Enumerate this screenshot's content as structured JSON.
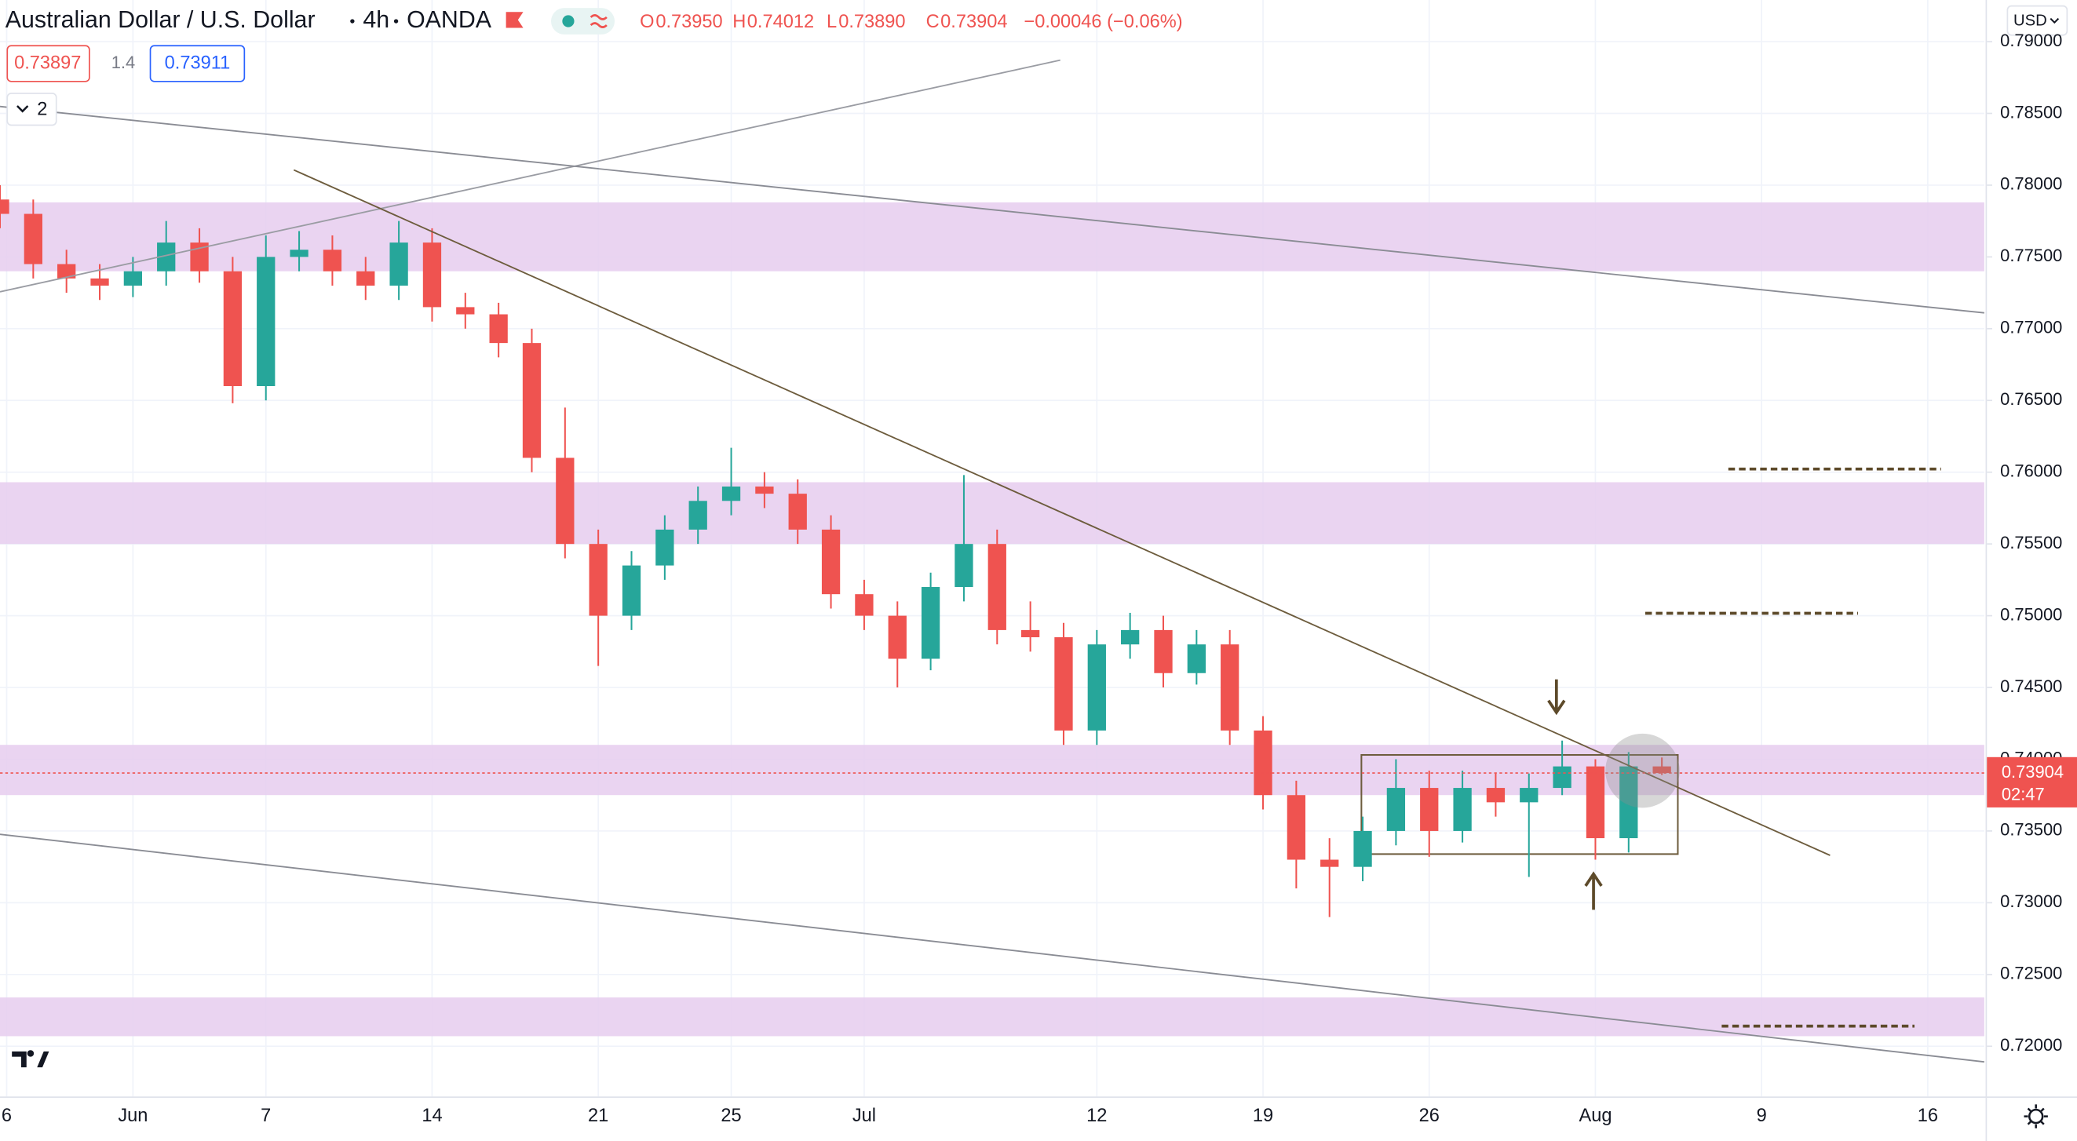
{
  "header": {
    "symbol": "Australian Dollar / U.S. Dollar",
    "interval": "4h",
    "exchange": "OANDA",
    "open_label": "O",
    "open": "0.73950",
    "high_label": "H",
    "high": "0.74012",
    "low_label": "L",
    "low": "0.73890",
    "close_label": "C",
    "close": "0.73904",
    "change": "−0.00046 (−0.06%)",
    "sell": "0.73897",
    "spread": "1.4",
    "buy": "0.73911",
    "indicators_count": "2",
    "currency": "USD"
  },
  "chart_data": {
    "type": "candlestick",
    "x": [
      0,
      1,
      2,
      3,
      4,
      5,
      6,
      7,
      8,
      9,
      10,
      11,
      12,
      13,
      14,
      15,
      16,
      17,
      18,
      19,
      20,
      21,
      22,
      23,
      24,
      25,
      26,
      27,
      28,
      29,
      30,
      31,
      32,
      33,
      34,
      35,
      36,
      37,
      38,
      39,
      40,
      41,
      42,
      43,
      44,
      45,
      46,
      47,
      48,
      49,
      50
    ],
    "open": [
      0.779,
      0.778,
      0.7745,
      0.7735,
      0.773,
      0.774,
      0.776,
      0.774,
      0.766,
      0.775,
      0.7755,
      0.774,
      0.773,
      0.776,
      0.7715,
      0.771,
      0.769,
      0.761,
      0.755,
      0.75,
      0.7535,
      0.756,
      0.758,
      0.759,
      0.7585,
      0.756,
      0.7515,
      0.75,
      0.747,
      0.752,
      0.755,
      0.749,
      0.7485,
      0.742,
      0.748,
      0.749,
      0.746,
      0.748,
      0.742,
      0.7375,
      0.733,
      0.7325,
      0.735,
      0.738,
      0.735,
      0.738,
      0.737,
      0.738,
      0.7395,
      0.7345,
      0.7395
    ],
    "high": [
      0.78,
      0.779,
      0.7755,
      0.7745,
      0.775,
      0.7775,
      0.777,
      0.775,
      0.7765,
      0.7768,
      0.7765,
      0.775,
      0.7775,
      0.777,
      0.7725,
      0.7718,
      0.77,
      0.7645,
      0.756,
      0.7545,
      0.757,
      0.759,
      0.7617,
      0.76,
      0.7595,
      0.757,
      0.7525,
      0.751,
      0.753,
      0.7598,
      0.756,
      0.751,
      0.7495,
      0.749,
      0.7502,
      0.75,
      0.749,
      0.749,
      0.743,
      0.7385,
      0.7345,
      0.736,
      0.74,
      0.7392,
      0.7392,
      0.739,
      0.739,
      0.7413,
      0.74,
      0.7405,
      0.74012
    ],
    "low": [
      0.777,
      0.7735,
      0.7725,
      0.772,
      0.7722,
      0.773,
      0.7732,
      0.7648,
      0.765,
      0.774,
      0.773,
      0.772,
      0.772,
      0.7705,
      0.77,
      0.768,
      0.76,
      0.754,
      0.7465,
      0.749,
      0.7525,
      0.755,
      0.757,
      0.7575,
      0.755,
      0.7505,
      0.749,
      0.745,
      0.7462,
      0.751,
      0.748,
      0.7475,
      0.741,
      0.741,
      0.747,
      0.745,
      0.7452,
      0.741,
      0.7365,
      0.731,
      0.729,
      0.7315,
      0.734,
      0.7332,
      0.7342,
      0.736,
      0.7318,
      0.7375,
      0.733,
      0.7335,
      0.7389
    ],
    "close": [
      0.778,
      0.7745,
      0.7735,
      0.773,
      0.774,
      0.776,
      0.774,
      0.766,
      0.775,
      0.7755,
      0.774,
      0.773,
      0.776,
      0.7715,
      0.771,
      0.769,
      0.761,
      0.755,
      0.75,
      0.7535,
      0.756,
      0.758,
      0.759,
      0.7585,
      0.756,
      0.7515,
      0.75,
      0.747,
      0.752,
      0.755,
      0.749,
      0.7485,
      0.742,
      0.748,
      0.749,
      0.746,
      0.748,
      0.742,
      0.7375,
      0.733,
      0.7325,
      0.735,
      0.738,
      0.735,
      0.738,
      0.737,
      0.738,
      0.7395,
      0.7345,
      0.7395,
      0.73904
    ],
    "up_color": "#26a69a",
    "down_color": "#ef5350",
    "xlim": [
      0,
      59.7
    ],
    "ylim": [
      0.7165,
      0.7929
    ],
    "xticks": [
      {
        "value": 0.2,
        "label": "6"
      },
      {
        "value": 4,
        "label": "Jun"
      },
      {
        "value": 8,
        "label": "7"
      },
      {
        "value": 13,
        "label": "14"
      },
      {
        "value": 18,
        "label": "21"
      },
      {
        "value": 22,
        "label": "25"
      },
      {
        "value": 26,
        "label": "Jul"
      },
      {
        "value": 33,
        "label": "12"
      },
      {
        "value": 38,
        "label": "19"
      },
      {
        "value": 43,
        "label": "26"
      },
      {
        "value": 48,
        "label": "Aug"
      },
      {
        "value": 53,
        "label": "9"
      },
      {
        "value": 58,
        "label": "16"
      }
    ],
    "yticks": [
      {
        "value": 0.72,
        "label": "0.72000"
      },
      {
        "value": 0.725,
        "label": "0.72500"
      },
      {
        "value": 0.73,
        "label": "0.73000"
      },
      {
        "value": 0.735,
        "label": "0.73500"
      },
      {
        "value": 0.74,
        "label": "0.74000"
      },
      {
        "value": 0.745,
        "label": "0.74500"
      },
      {
        "value": 0.75,
        "label": "0.75000"
      },
      {
        "value": 0.755,
        "label": "0.75500"
      },
      {
        "value": 0.76,
        "label": "0.76000"
      },
      {
        "value": 0.765,
        "label": "0.76500"
      },
      {
        "value": 0.77,
        "label": "0.77000"
      },
      {
        "value": 0.775,
        "label": "0.77500"
      },
      {
        "value": 0.78,
        "label": "0.78000"
      },
      {
        "value": 0.785,
        "label": "0.78500"
      },
      {
        "value": 0.79,
        "label": "0.79000"
      }
    ],
    "grid": true,
    "zone_color": "#e6cdee",
    "zones": [
      {
        "y": [
          0.774,
          0.7788
        ]
      },
      {
        "y": [
          0.755,
          0.7593
        ]
      },
      {
        "y": [
          0.7375,
          0.741
        ]
      },
      {
        "y": [
          0.7207,
          0.7234
        ]
      }
    ],
    "trend_lines": [
      {
        "x": [
          0,
          31.9
        ],
        "y": [
          0.77257,
          0.78871
        ],
        "color": "#9a9ca3"
      },
      {
        "x": [
          0,
          59.7
        ],
        "y": [
          0.78548,
          0.7711
        ],
        "color": "#8a8c94"
      },
      {
        "x": [
          8.84,
          55.06
        ],
        "y": [
          0.78106,
          0.7333
        ],
        "color": "#6d5c3d"
      },
      {
        "x": [
          0,
          59.7
        ],
        "y": [
          0.73477,
          0.71891
        ],
        "color": "#8a8c94"
      }
    ],
    "box": {
      "x": [
        40.96,
        50.48
      ],
      "y": [
        0.73339,
        0.7403
      ],
      "color": "#6d5c3d"
    },
    "levels": [
      {
        "x": [
          52.0,
          58.4
        ],
        "y": 0.76022
      },
      {
        "x": [
          49.5,
          55.9
        ],
        "y": 0.75017
      },
      {
        "x": [
          51.8,
          57.6
        ],
        "y": 0.7214
      }
    ],
    "level_color": "#5d4a2a",
    "last_price": 0.73904,
    "last_price_label": "0.73904",
    "countdown": "02:47"
  }
}
